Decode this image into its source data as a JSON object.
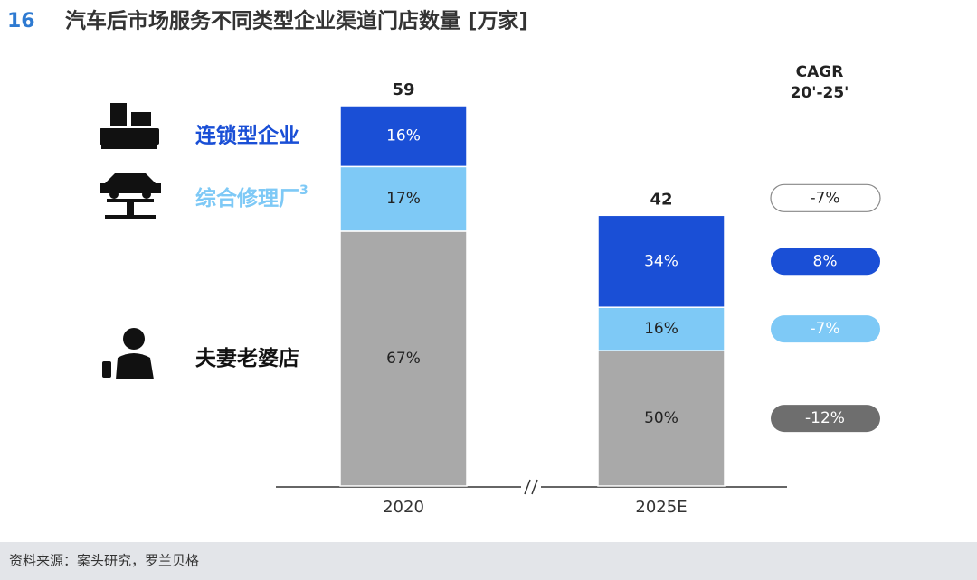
{
  "chart_data": {
    "type": "bar",
    "number": "16",
    "title": "汽车后市场服务不同类型企业渠道门店数量 [万家]",
    "categories": [
      "2020",
      "2025E"
    ],
    "totals": [
      59,
      42
    ],
    "series": [
      {
        "name": "连锁型企业",
        "color": "#1a4fd6",
        "values": [
          16,
          34
        ],
        "value_labels": [
          "16%",
          "34%"
        ],
        "cagr": 8,
        "cagr_label": "8%",
        "cagr_color": "#1a4fd6"
      },
      {
        "name": "综合修理厂",
        "name_footnote": "3",
        "color": "#7ec9f6",
        "values": [
          17,
          16
        ],
        "value_labels": [
          "17%",
          "16%"
        ],
        "cagr": -7,
        "cagr_label": "-7%",
        "cagr_color": "#7ec9f6"
      },
      {
        "name": "夫妻老婆店",
        "color": "#a9a9a9",
        "values": [
          67,
          50
        ],
        "value_labels": [
          "67%",
          "50%"
        ],
        "cagr": -12,
        "cagr_label": "-12%",
        "cagr_color": "#6e6e6e"
      }
    ],
    "cagr_title": "CAGR",
    "cagr_period": "20'-25'",
    "total_cagr": -7,
    "total_cagr_label": "-7%",
    "source": "资料来源：案头研究，罗兰贝格"
  }
}
